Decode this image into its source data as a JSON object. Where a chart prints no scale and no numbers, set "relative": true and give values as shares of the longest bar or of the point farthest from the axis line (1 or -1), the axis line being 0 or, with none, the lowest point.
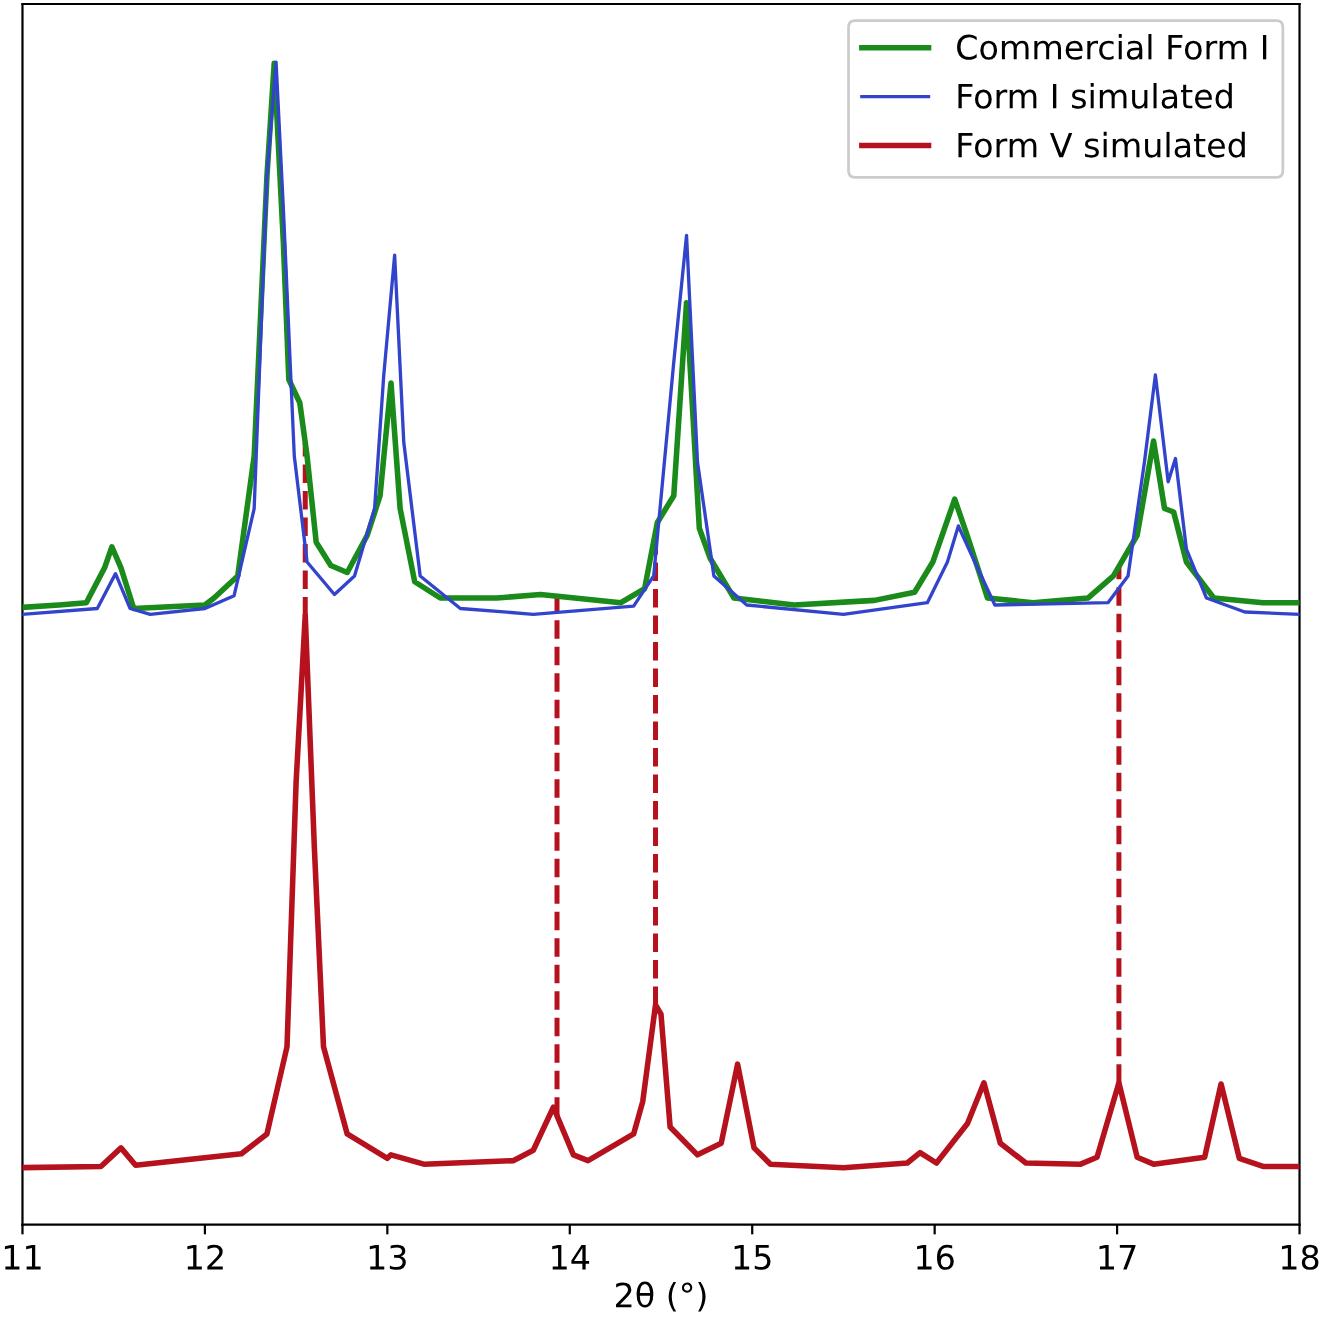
{
  "chart_data": {
    "type": "line",
    "relative": true,
    "xlabel": "2θ (°)",
    "xlim": [
      11,
      18
    ],
    "xticks": [
      11,
      12,
      13,
      14,
      15,
      16,
      17,
      18
    ],
    "legend": "top right",
    "grid": false,
    "marker": "none",
    "line_style": "solid",
    "series": [
      {
        "name": "Commercial Form I",
        "color": "#1a8a1a",
        "x": [
          11.0,
          11.2,
          11.35,
          11.45,
          11.49,
          11.54,
          11.61,
          12.0,
          12.05,
          12.18,
          12.27,
          12.34,
          12.38,
          12.43,
          12.46,
          12.52,
          12.56,
          12.61,
          12.69,
          12.78,
          12.89,
          12.96,
          13.02,
          13.07,
          13.15,
          13.29,
          13.6,
          13.84,
          14.28,
          14.41,
          14.48,
          14.57,
          14.64,
          14.71,
          14.77,
          14.9,
          15.23,
          15.67,
          15.89,
          15.99,
          16.11,
          16.18,
          16.29,
          16.54,
          16.84,
          16.98,
          17.11,
          17.2,
          17.26,
          17.31,
          17.38,
          17.53,
          17.8,
          18.0
        ],
        "values": [
          0.531,
          0.533,
          0.535,
          0.565,
          0.583,
          0.565,
          0.53,
          0.533,
          0.539,
          0.558,
          0.661,
          0.902,
          0.999,
          0.845,
          0.727,
          0.707,
          0.661,
          0.587,
          0.567,
          0.561,
          0.593,
          0.627,
          0.724,
          0.616,
          0.553,
          0.539,
          0.539,
          0.542,
          0.535,
          0.547,
          0.604,
          0.627,
          0.793,
          0.599,
          0.573,
          0.539,
          0.533,
          0.537,
          0.544,
          0.57,
          0.624,
          0.592,
          0.539,
          0.535,
          0.539,
          0.558,
          0.593,
          0.674,
          0.616,
          0.613,
          0.57,
          0.539,
          0.535,
          0.535
        ]
      },
      {
        "name": "Form I simulated",
        "color": "#3344cc",
        "x": [
          11.0,
          11.41,
          11.51,
          11.59,
          11.7,
          12.0,
          12.16,
          12.27,
          12.34,
          12.39,
          12.43,
          12.49,
          12.56,
          12.71,
          12.82,
          12.93,
          12.98,
          13.04,
          13.09,
          13.18,
          13.4,
          13.8,
          14.35,
          14.46,
          14.57,
          14.64,
          14.7,
          14.79,
          14.97,
          15.5,
          15.96,
          16.07,
          16.13,
          16.22,
          16.33,
          16.95,
          17.06,
          17.15,
          17.21,
          17.28,
          17.32,
          17.38,
          17.49,
          17.7,
          18.0
        ],
        "values": [
          0.525,
          0.53,
          0.56,
          0.53,
          0.525,
          0.53,
          0.541,
          0.616,
          0.902,
          1.0,
          0.874,
          0.661,
          0.57,
          0.542,
          0.558,
          0.616,
          0.73,
          0.834,
          0.673,
          0.558,
          0.53,
          0.525,
          0.532,
          0.558,
          0.742,
          0.851,
          0.656,
          0.558,
          0.533,
          0.525,
          0.535,
          0.57,
          0.601,
          0.57,
          0.533,
          0.535,
          0.558,
          0.656,
          0.731,
          0.639,
          0.659,
          0.581,
          0.539,
          0.527,
          0.525
        ]
      },
      {
        "name": "Form V simulated",
        "color": "#b5121e",
        "x": [
          11.0,
          11.43,
          11.54,
          11.62,
          12.2,
          12.34,
          12.45,
          12.5,
          12.55,
          12.6,
          12.65,
          12.78,
          13.0,
          13.02,
          13.2,
          13.69,
          13.8,
          13.91,
          14.02,
          14.1,
          14.35,
          14.4,
          14.47,
          14.5,
          14.55,
          14.7,
          14.83,
          14.92,
          15.01,
          15.1,
          15.5,
          15.85,
          15.92,
          16.01,
          16.18,
          16.27,
          16.36,
          16.5,
          16.8,
          16.89,
          17.01,
          17.11,
          17.2,
          17.48,
          17.57,
          17.67,
          17.8,
          18.0
        ],
        "values": [
          0.049,
          0.05,
          0.066,
          0.051,
          0.061,
          0.078,
          0.153,
          0.381,
          0.524,
          0.324,
          0.153,
          0.078,
          0.057,
          0.06,
          0.052,
          0.055,
          0.064,
          0.101,
          0.06,
          0.055,
          0.078,
          0.106,
          0.189,
          0.181,
          0.084,
          0.06,
          0.07,
          0.138,
          0.066,
          0.052,
          0.049,
          0.053,
          0.062,
          0.053,
          0.087,
          0.122,
          0.07,
          0.053,
          0.052,
          0.058,
          0.122,
          0.058,
          0.052,
          0.058,
          0.121,
          0.057,
          0.05,
          0.05
        ]
      }
    ],
    "ref_lines": [
      {
        "axis": "x",
        "value": 12.55,
        "color": "#b5121e",
        "line_style": "dashed"
      },
      {
        "axis": "x",
        "value": 13.93,
        "color": "#b5121e",
        "line_style": "dashed"
      },
      {
        "axis": "x",
        "value": 14.47,
        "color": "#b5121e",
        "line_style": "dashed"
      },
      {
        "axis": "x",
        "value": 17.01,
        "color": "#b5121e",
        "line_style": "dashed"
      }
    ]
  }
}
